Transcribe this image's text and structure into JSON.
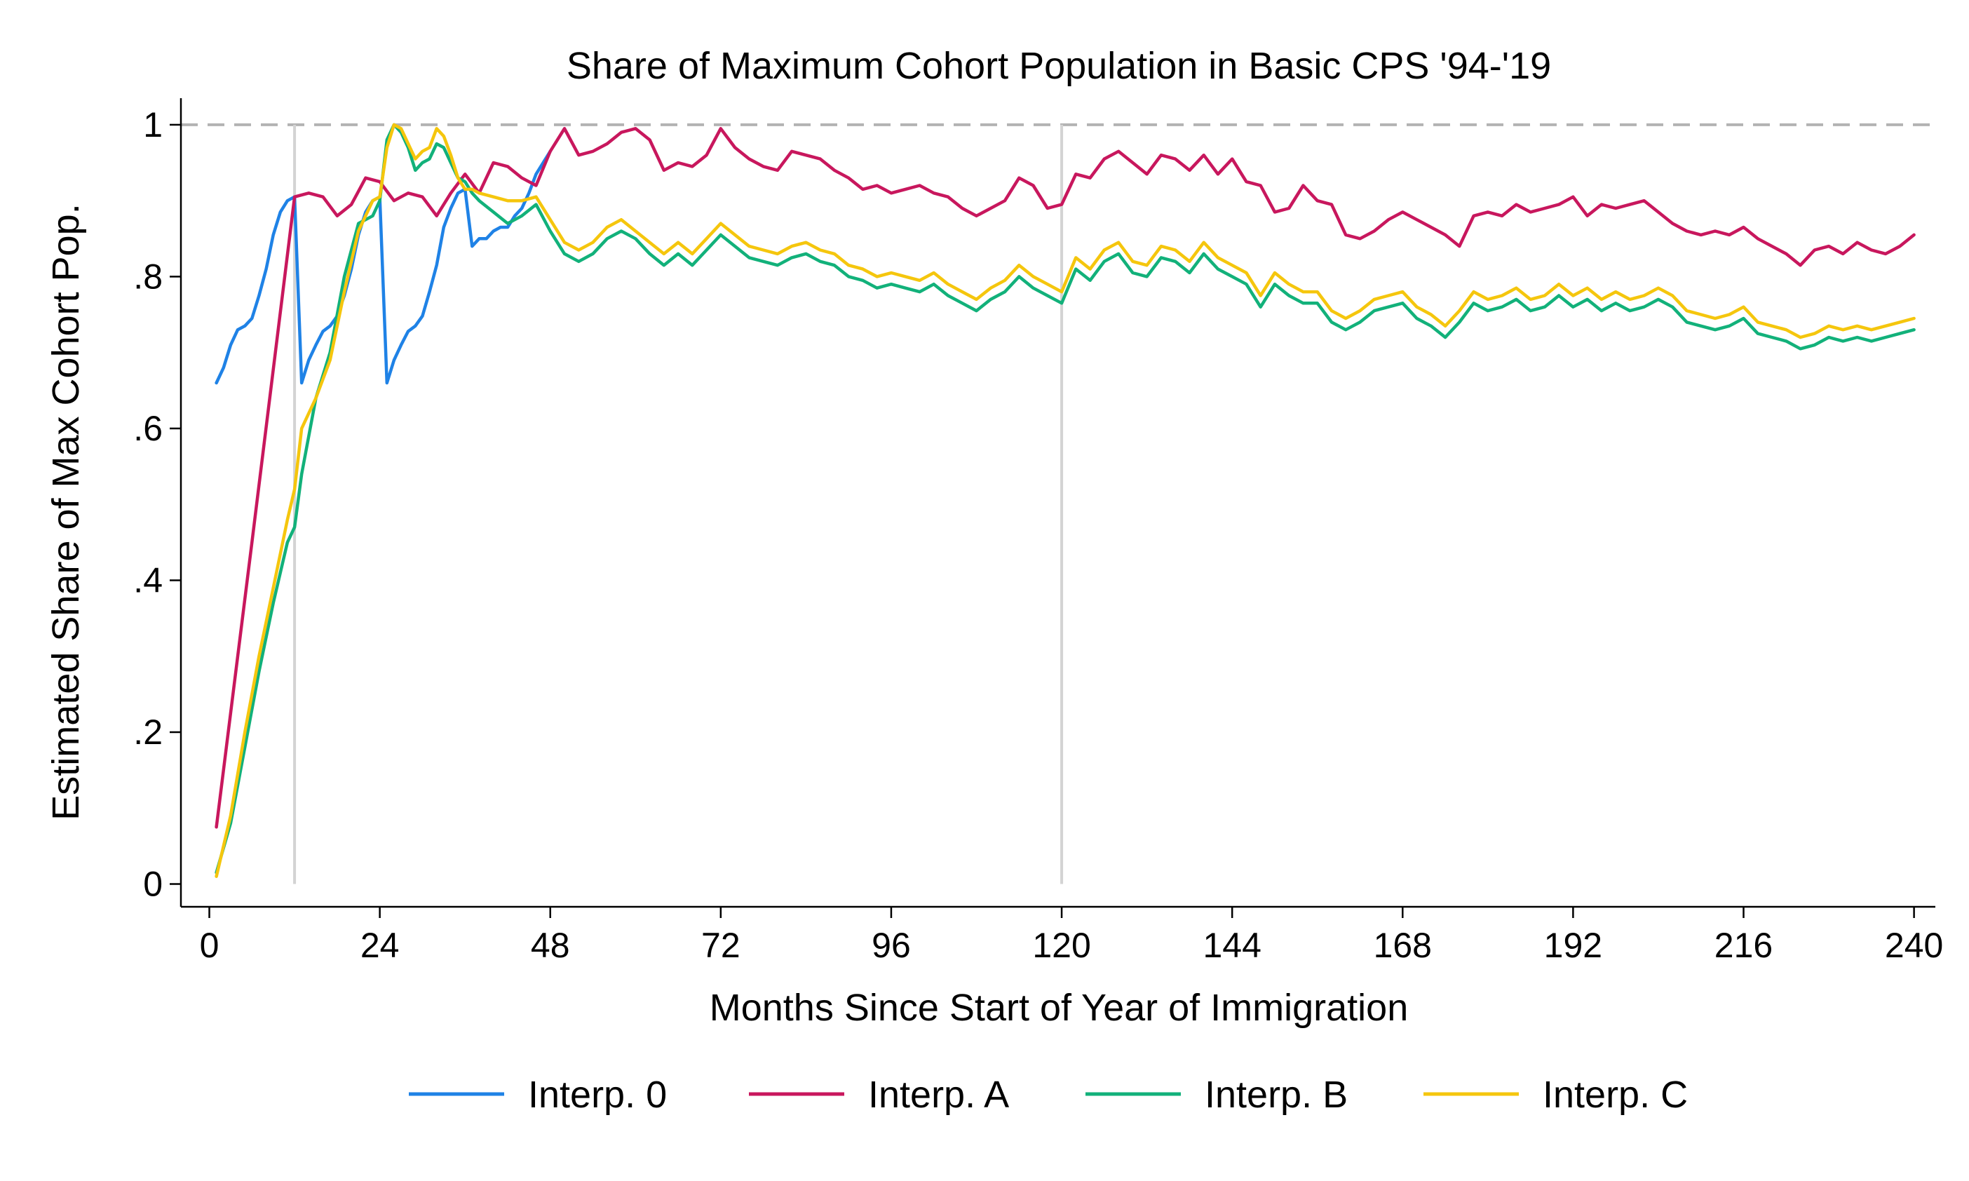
{
  "chart_data": {
    "type": "line",
    "title": "Share of Maximum Cohort Population in Basic CPS '94-'19",
    "xlabel": "Months Since Start of Year of Immigration",
    "ylabel": "Estimated Share of Max Cohort Pop.",
    "xlim": [
      -4,
      243
    ],
    "ylim": [
      -0.03,
      1.035
    ],
    "x_ticks": [
      0,
      24,
      48,
      72,
      96,
      120,
      144,
      168,
      192,
      216,
      240
    ],
    "y_ticks": [
      0,
      0.2,
      0.4,
      0.6,
      0.8,
      1
    ],
    "y_tick_labels": [
      "0",
      ".2",
      ".4",
      ".6",
      ".8",
      "1"
    ],
    "reference_lines": {
      "horizontal": [
        {
          "y": 1,
          "style": "dashed",
          "color": "#b3b3b3"
        }
      ],
      "vertical": [
        {
          "x": 12,
          "color": "#d3d3d3"
        },
        {
          "x": 120,
          "color": "#d3d3d3"
        }
      ]
    },
    "grid": false,
    "legend_position": "bottom",
    "series": [
      {
        "name": "Interp. 0",
        "color": "#1f82e6",
        "x": [
          1,
          2,
          3,
          4,
          5,
          6,
          7,
          8,
          9,
          10,
          11,
          12,
          13,
          14,
          15,
          16,
          17,
          18,
          19,
          20,
          21,
          22,
          23,
          24,
          25,
          26,
          27,
          28,
          29,
          30,
          31,
          32,
          33,
          34,
          35,
          36,
          37,
          38,
          39,
          40,
          41,
          42,
          43,
          44,
          45,
          46,
          47,
          48
        ],
        "y": [
          0.66,
          0.68,
          0.71,
          0.73,
          0.735,
          0.745,
          0.775,
          0.81,
          0.855,
          0.885,
          0.9,
          0.905,
          0.66,
          0.69,
          0.71,
          0.728,
          0.735,
          0.748,
          0.775,
          0.81,
          0.855,
          0.885,
          0.9,
          0.905,
          0.66,
          0.69,
          0.71,
          0.728,
          0.735,
          0.748,
          0.78,
          0.815,
          0.865,
          0.89,
          0.91,
          0.915,
          0.84,
          0.85,
          0.85,
          0.86,
          0.865,
          0.865,
          0.88,
          0.89,
          0.91,
          0.935,
          0.95,
          0.965
        ]
      },
      {
        "name": "Interp. A",
        "color": "#c8175d",
        "x": [
          1,
          6,
          12,
          14,
          16,
          18,
          20,
          22,
          24,
          26,
          28,
          30,
          32,
          34,
          36,
          38,
          40,
          42,
          44,
          46,
          48,
          50,
          52,
          54,
          56,
          58,
          60,
          62,
          64,
          66,
          68,
          70,
          72,
          74,
          76,
          78,
          80,
          82,
          84,
          86,
          88,
          90,
          92,
          94,
          96,
          98,
          100,
          102,
          104,
          106,
          108,
          110,
          112,
          114,
          116,
          118,
          120,
          122,
          124,
          126,
          128,
          130,
          132,
          134,
          136,
          138,
          140,
          142,
          144,
          146,
          148,
          150,
          152,
          154,
          156,
          158,
          160,
          162,
          164,
          166,
          168,
          170,
          172,
          174,
          176,
          178,
          180,
          182,
          184,
          186,
          188,
          190,
          192,
          194,
          196,
          198,
          200,
          202,
          204,
          206,
          208,
          210,
          212,
          214,
          216,
          218,
          220,
          222,
          224,
          226,
          228,
          230,
          232,
          234,
          236,
          238,
          240
        ],
        "y": [
          0.075,
          0.45,
          0.905,
          0.91,
          0.905,
          0.88,
          0.895,
          0.93,
          0.925,
          0.9,
          0.91,
          0.905,
          0.88,
          0.91,
          0.935,
          0.91,
          0.95,
          0.945,
          0.93,
          0.92,
          0.965,
          0.995,
          0.96,
          0.965,
          0.975,
          0.99,
          0.995,
          0.98,
          0.94,
          0.95,
          0.945,
          0.96,
          0.995,
          0.97,
          0.955,
          0.945,
          0.94,
          0.965,
          0.96,
          0.955,
          0.94,
          0.93,
          0.915,
          0.92,
          0.91,
          0.915,
          0.92,
          0.91,
          0.905,
          0.89,
          0.88,
          0.89,
          0.9,
          0.93,
          0.92,
          0.89,
          0.895,
          0.935,
          0.93,
          0.955,
          0.965,
          0.95,
          0.935,
          0.96,
          0.955,
          0.94,
          0.96,
          0.935,
          0.955,
          0.925,
          0.92,
          0.885,
          0.89,
          0.92,
          0.9,
          0.895,
          0.855,
          0.85,
          0.86,
          0.875,
          0.885,
          0.875,
          0.865,
          0.855,
          0.84,
          0.88,
          0.885,
          0.88,
          0.895,
          0.885,
          0.89,
          0.895,
          0.905,
          0.88,
          0.895,
          0.89,
          0.895,
          0.9,
          0.885,
          0.87,
          0.86,
          0.855,
          0.86,
          0.855,
          0.865,
          0.85,
          0.84,
          0.83,
          0.815,
          0.835,
          0.84,
          0.83,
          0.845,
          0.835,
          0.83,
          0.84,
          0.855
        ]
      },
      {
        "name": "Interp. B",
        "color": "#12b17a",
        "x": [
          1,
          3,
          5,
          7,
          9,
          11,
          12,
          13,
          15,
          17,
          19,
          21,
          23,
          24,
          25,
          26,
          27,
          28,
          29,
          30,
          31,
          32,
          33,
          34,
          35,
          36,
          37,
          38,
          40,
          42,
          44,
          46,
          48,
          50,
          52,
          54,
          56,
          58,
          60,
          62,
          64,
          66,
          68,
          70,
          72,
          74,
          76,
          78,
          80,
          82,
          84,
          86,
          88,
          90,
          92,
          94,
          96,
          98,
          100,
          102,
          104,
          106,
          108,
          110,
          112,
          114,
          116,
          118,
          120,
          122,
          124,
          126,
          128,
          130,
          132,
          134,
          136,
          138,
          140,
          142,
          144,
          146,
          148,
          150,
          152,
          154,
          156,
          158,
          160,
          162,
          164,
          166,
          168,
          170,
          172,
          174,
          176,
          178,
          180,
          182,
          184,
          186,
          188,
          190,
          192,
          194,
          196,
          198,
          200,
          202,
          204,
          206,
          208,
          210,
          212,
          214,
          216,
          218,
          220,
          222,
          224,
          226,
          228,
          230,
          232,
          234,
          236,
          238,
          240
        ],
        "y": [
          0.015,
          0.08,
          0.18,
          0.28,
          0.37,
          0.45,
          0.47,
          0.54,
          0.64,
          0.7,
          0.8,
          0.87,
          0.88,
          0.9,
          0.98,
          1.0,
          0.99,
          0.97,
          0.94,
          0.95,
          0.955,
          0.975,
          0.97,
          0.95,
          0.93,
          0.925,
          0.91,
          0.9,
          0.885,
          0.87,
          0.88,
          0.895,
          0.86,
          0.83,
          0.82,
          0.83,
          0.85,
          0.86,
          0.85,
          0.83,
          0.815,
          0.83,
          0.815,
          0.835,
          0.855,
          0.84,
          0.825,
          0.82,
          0.815,
          0.825,
          0.83,
          0.82,
          0.815,
          0.8,
          0.795,
          0.785,
          0.79,
          0.785,
          0.78,
          0.79,
          0.775,
          0.765,
          0.755,
          0.77,
          0.78,
          0.8,
          0.785,
          0.775,
          0.765,
          0.81,
          0.795,
          0.82,
          0.83,
          0.805,
          0.8,
          0.825,
          0.82,
          0.805,
          0.83,
          0.81,
          0.8,
          0.79,
          0.76,
          0.79,
          0.775,
          0.765,
          0.765,
          0.74,
          0.73,
          0.74,
          0.755,
          0.76,
          0.765,
          0.745,
          0.735,
          0.72,
          0.74,
          0.765,
          0.755,
          0.76,
          0.77,
          0.755,
          0.76,
          0.775,
          0.76,
          0.77,
          0.755,
          0.765,
          0.755,
          0.76,
          0.77,
          0.76,
          0.74,
          0.735,
          0.73,
          0.735,
          0.745,
          0.725,
          0.72,
          0.715,
          0.705,
          0.71,
          0.72,
          0.715,
          0.72,
          0.715,
          0.72,
          0.725,
          0.73
        ]
      },
      {
        "name": "Interp. C",
        "color": "#f5c60d",
        "x": [
          1,
          3,
          5,
          7,
          9,
          11,
          12,
          13,
          15,
          17,
          19,
          21,
          23,
          24,
          25,
          26,
          27,
          28,
          29,
          30,
          31,
          32,
          33,
          34,
          35,
          36,
          37,
          38,
          40,
          42,
          44,
          46,
          48,
          50,
          52,
          54,
          56,
          58,
          60,
          62,
          64,
          66,
          68,
          70,
          72,
          74,
          76,
          78,
          80,
          82,
          84,
          86,
          88,
          90,
          92,
          94,
          96,
          98,
          100,
          102,
          104,
          106,
          108,
          110,
          112,
          114,
          116,
          118,
          120,
          122,
          124,
          126,
          128,
          130,
          132,
          134,
          136,
          138,
          140,
          142,
          144,
          146,
          148,
          150,
          152,
          154,
          156,
          158,
          160,
          162,
          164,
          166,
          168,
          170,
          172,
          174,
          176,
          178,
          180,
          182,
          184,
          186,
          188,
          190,
          192,
          194,
          196,
          198,
          200,
          202,
          204,
          206,
          208,
          210,
          212,
          214,
          216,
          218,
          220,
          222,
          224,
          226,
          228,
          230,
          232,
          234,
          236,
          238,
          240
        ],
        "y": [
          0.01,
          0.09,
          0.2,
          0.3,
          0.39,
          0.48,
          0.52,
          0.6,
          0.64,
          0.69,
          0.78,
          0.86,
          0.9,
          0.905,
          0.97,
          1.0,
          0.995,
          0.975,
          0.955,
          0.965,
          0.97,
          0.995,
          0.985,
          0.96,
          0.93,
          0.915,
          0.915,
          0.91,
          0.905,
          0.9,
          0.9,
          0.905,
          0.875,
          0.845,
          0.835,
          0.845,
          0.865,
          0.875,
          0.86,
          0.845,
          0.83,
          0.845,
          0.83,
          0.85,
          0.87,
          0.855,
          0.84,
          0.835,
          0.83,
          0.84,
          0.845,
          0.835,
          0.83,
          0.815,
          0.81,
          0.8,
          0.805,
          0.8,
          0.795,
          0.805,
          0.79,
          0.78,
          0.77,
          0.785,
          0.795,
          0.815,
          0.8,
          0.79,
          0.78,
          0.825,
          0.81,
          0.835,
          0.845,
          0.82,
          0.815,
          0.84,
          0.835,
          0.82,
          0.845,
          0.825,
          0.815,
          0.805,
          0.775,
          0.805,
          0.79,
          0.78,
          0.78,
          0.755,
          0.745,
          0.755,
          0.77,
          0.775,
          0.78,
          0.76,
          0.75,
          0.735,
          0.755,
          0.78,
          0.77,
          0.775,
          0.785,
          0.77,
          0.775,
          0.79,
          0.775,
          0.785,
          0.77,
          0.78,
          0.77,
          0.775,
          0.785,
          0.775,
          0.755,
          0.75,
          0.745,
          0.75,
          0.76,
          0.74,
          0.735,
          0.73,
          0.72,
          0.725,
          0.735,
          0.73,
          0.735,
          0.73,
          0.735,
          0.74,
          0.745
        ]
      }
    ]
  }
}
